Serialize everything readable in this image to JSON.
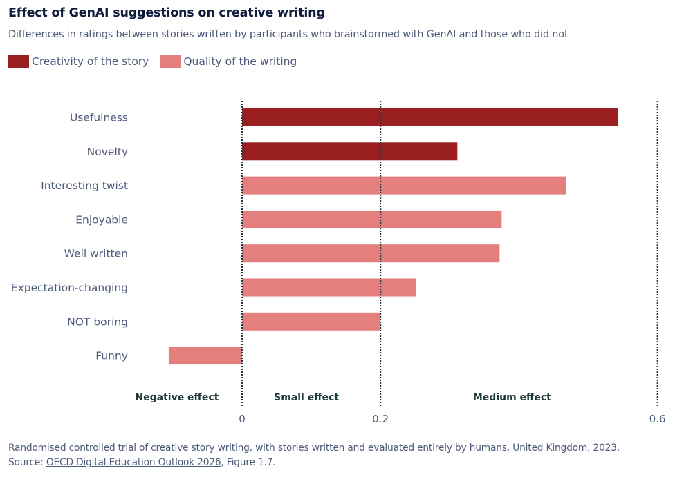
{
  "header": {
    "title": "Effect of GenAI suggestions on creative writing",
    "subtitle": "Differences in ratings between stories written by participants who brainstormed with GenAI and those who did not"
  },
  "colors": {
    "creativity": "#991f21",
    "quality": "#e37f7c",
    "refline": "#253a3f",
    "label": "#4f5b7a",
    "zone_label": "#1f3a3a"
  },
  "chart_data": {
    "type": "bar",
    "orientation": "horizontal",
    "title": "Effect of GenAI suggestions on creative writing",
    "subtitle": "Differences in ratings between stories written by participants who brainstormed with GenAI and those who did not",
    "legend": [
      {
        "name": "Creativity of the story",
        "key": "creativity"
      },
      {
        "name": "Quality of the writing",
        "key": "quality"
      }
    ],
    "legend_position": "top-left",
    "categories": [
      "Usefulness",
      "Novelty",
      "Interesting twist",
      "Enjoyable",
      "Well written",
      "Expectation-changing",
      "NOT boring",
      "Funny"
    ],
    "values": [
      0.543,
      0.311,
      0.468,
      0.375,
      0.372,
      0.251,
      0.2,
      -0.106
    ],
    "groups": [
      "creativity",
      "creativity",
      "quality",
      "quality",
      "quality",
      "quality",
      "quality",
      "quality"
    ],
    "xlim": [
      -0.35,
      0.6
    ],
    "xticks": [
      0,
      0.2,
      0.6
    ],
    "xtick_labels": [
      "0",
      "0.2",
      "0.6"
    ],
    "reference_lines": [
      0,
      0.2,
      0.6
    ],
    "zones": [
      {
        "label": "Negative effect",
        "from": -0.35,
        "to": 0
      },
      {
        "label": "Small effect",
        "from": 0,
        "to": 0.2
      },
      {
        "label": "Medium effect",
        "from": 0.2,
        "to": 0.6
      }
    ],
    "xlabel": "",
    "ylabel": "",
    "grid": false
  },
  "footer": {
    "note": "Randomised controlled trial of creative story writing, with stories written and evaluated entirely by humans, United Kingdom, 2023.",
    "source_prefix": "Source: ",
    "source_link": "OECD Digital Education Outlook 2026",
    "source_suffix": ", Figure 1.7."
  }
}
